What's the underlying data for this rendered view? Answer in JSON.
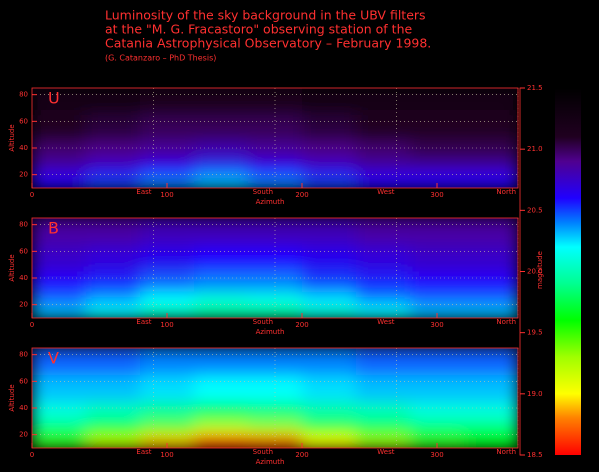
{
  "chart_data": {
    "type": "heatmap",
    "title": [
      "Luminosity of the sky background in the UBV filters",
      "at the \"M. G. Fracastoro\" observing station of the",
      "Catania Astrophysical Observatory – February 1998."
    ],
    "subtitle": "(G. Catanzaro – PhD Thesis)",
    "xlabel": "Azimuth",
    "ylabel": "Altitude",
    "xlim": [
      0,
      360
    ],
    "ylim": [
      10,
      85
    ],
    "xticks": [
      0,
      100,
      200,
      300
    ],
    "yticks": [
      20,
      40,
      60,
      80
    ],
    "direction_ticks": [
      {
        "value": 90,
        "label": "East"
      },
      {
        "value": 180,
        "label": "South"
      },
      {
        "value": 270,
        "label": "West"
      },
      {
        "value": 360,
        "label": "North"
      }
    ],
    "grid": true,
    "xbins": [
      0,
      40,
      80,
      120,
      160,
      200,
      240,
      280,
      320,
      360
    ],
    "ybins": [
      10,
      20,
      30,
      45,
      65,
      85
    ],
    "panels": [
      {
        "label": "U",
        "z": [
          [
            20.6,
            20.5,
            20.4,
            20.3,
            20.4,
            20.5,
            20.6,
            20.6,
            20.6
          ],
          [
            20.8,
            20.7,
            20.6,
            20.5,
            20.6,
            20.7,
            20.8,
            20.8,
            20.8
          ],
          [
            20.95,
            20.9,
            20.85,
            20.8,
            20.85,
            20.9,
            20.95,
            21.0,
            21.0
          ],
          [
            21.1,
            21.05,
            21.0,
            21.0,
            21.0,
            21.05,
            21.1,
            21.1,
            21.1
          ],
          [
            21.2,
            21.2,
            21.15,
            21.15,
            21.15,
            21.2,
            21.2,
            21.2,
            21.2
          ]
        ]
      },
      {
        "label": "B",
        "z": [
          [
            20.3,
            20.2,
            20.05,
            19.95,
            19.95,
            20.1,
            20.2,
            20.3,
            20.3
          ],
          [
            20.45,
            20.35,
            20.2,
            20.1,
            20.15,
            20.25,
            20.4,
            20.45,
            20.45
          ],
          [
            20.6,
            20.55,
            20.45,
            20.4,
            20.4,
            20.5,
            20.55,
            20.6,
            20.6
          ],
          [
            20.75,
            20.7,
            20.65,
            20.6,
            20.6,
            20.65,
            20.7,
            20.75,
            20.75
          ],
          [
            20.85,
            20.85,
            20.8,
            20.8,
            20.8,
            20.8,
            20.85,
            20.85,
            20.85
          ]
        ]
      },
      {
        "label": "V",
        "z": [
          [
            19.5,
            19.2,
            18.9,
            18.6,
            18.7,
            19.0,
            19.3,
            19.5,
            19.6
          ],
          [
            19.8,
            19.6,
            19.4,
            19.2,
            19.3,
            19.5,
            19.7,
            19.8,
            19.8
          ],
          [
            20.1,
            20.0,
            19.9,
            19.8,
            19.85,
            19.95,
            20.0,
            20.1,
            20.1
          ],
          [
            20.3,
            20.3,
            20.25,
            20.2,
            20.2,
            20.25,
            20.3,
            20.3,
            20.3
          ],
          [
            20.45,
            20.45,
            20.4,
            20.4,
            20.4,
            20.4,
            20.45,
            20.45,
            20.45
          ]
        ]
      }
    ],
    "colorbar": {
      "label": "magnitude",
      "lim": [
        18.5,
        21.5
      ],
      "ticks": [
        21.5,
        {
          "value": 21,
          "label": "21.0"
        },
        20.5,
        {
          "value": 20,
          "label": "20.0"
        },
        19.5,
        {
          "value": 19,
          "label": "19.0"
        },
        18.5
      ]
    },
    "colorscale": [
      [
        18.5,
        "#ff0000"
      ],
      [
        18.8,
        "#ff8000"
      ],
      [
        19.0,
        "#ffff00"
      ],
      [
        19.3,
        "#a0ff00"
      ],
      [
        19.6,
        "#00ff00"
      ],
      [
        19.9,
        "#00ff90"
      ],
      [
        20.2,
        "#00ffff"
      ],
      [
        20.4,
        "#0080ff"
      ],
      [
        20.6,
        "#2000ff"
      ],
      [
        20.9,
        "#500090"
      ],
      [
        21.1,
        "#200020"
      ],
      [
        21.5,
        "#000000"
      ]
    ]
  }
}
